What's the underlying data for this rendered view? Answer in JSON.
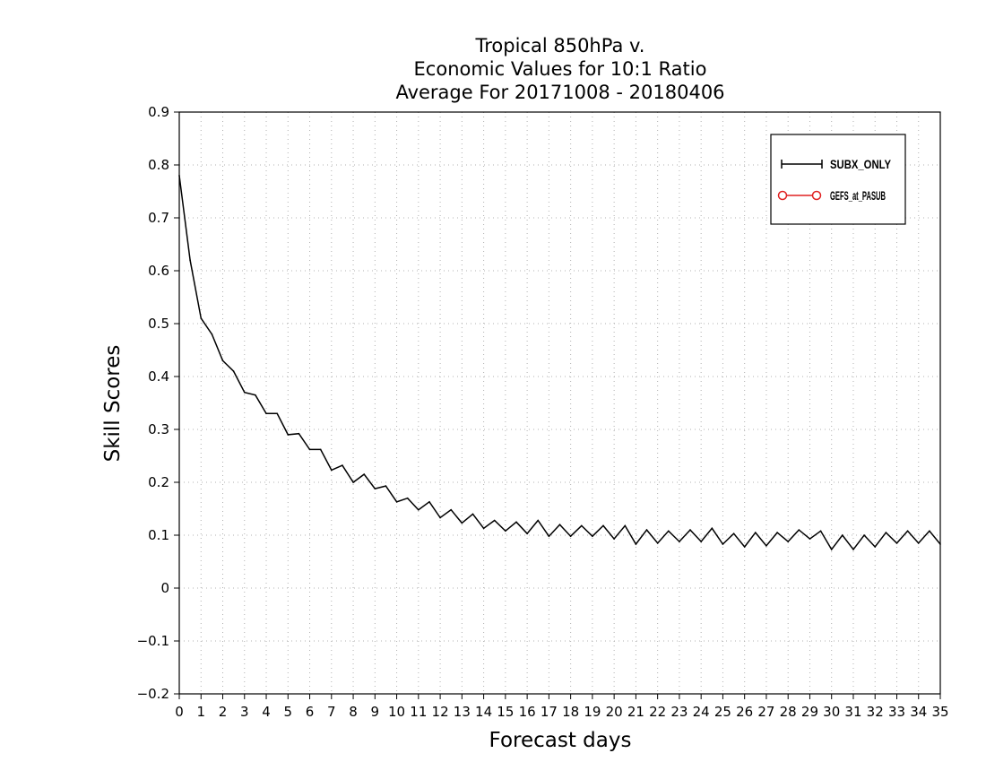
{
  "chart_data": {
    "type": "line",
    "title_lines": [
      "Tropical 850hPa v.",
      "Economic Values for 10:1 Ratio",
      "Average For 20171008 - 20180406"
    ],
    "xlabel": "Forecast days",
    "ylabel": "Skill Scores",
    "xlim": [
      0,
      35
    ],
    "ylim": [
      -0.2,
      0.9
    ],
    "x_ticks": [
      0,
      1,
      2,
      3,
      4,
      5,
      6,
      7,
      8,
      9,
      10,
      11,
      12,
      13,
      14,
      15,
      16,
      17,
      18,
      19,
      20,
      21,
      22,
      23,
      24,
      25,
      26,
      27,
      28,
      29,
      30,
      31,
      32,
      33,
      34,
      35
    ],
    "y_ticks": [
      -0.2,
      -0.1,
      0,
      0.1,
      0.2,
      0.3,
      0.4,
      0.5,
      0.6,
      0.7,
      0.8,
      0.9
    ],
    "y_tick_labels": [
      "−0.2",
      "−0.1",
      "0",
      "0.1",
      "0.2",
      "0.3",
      "0.4",
      "0.5",
      "0.6",
      "0.7",
      "0.8",
      "0.9"
    ],
    "grid": true,
    "legend_position": "top-right",
    "series": [
      {
        "name": "SUBX_ONLY",
        "color": "#000000",
        "marker": "plus",
        "x": [
          0,
          0.5,
          1,
          1.5,
          2,
          2.5,
          3,
          3.5,
          4,
          4.5,
          5,
          5.5,
          6,
          6.5,
          7,
          7.5,
          8,
          8.5,
          9,
          9.5,
          10,
          10.5,
          11,
          11.5,
          12,
          12.5,
          13,
          13.5,
          14,
          14.5,
          15,
          15.5,
          16,
          16.5,
          17,
          17.5,
          18,
          18.5,
          19,
          19.5,
          20,
          20.5,
          21,
          21.5,
          22,
          22.5,
          23,
          23.5,
          24,
          24.5,
          25,
          25.5,
          26,
          26.5,
          27,
          27.5,
          28,
          28.5,
          29,
          29.5,
          30,
          30.5,
          31,
          31.5,
          32,
          32.5,
          33,
          33.5,
          34,
          34.5,
          35
        ],
        "y": [
          0.78,
          0.62,
          0.51,
          0.48,
          0.43,
          0.41,
          0.37,
          0.365,
          0.33,
          0.33,
          0.29,
          0.292,
          0.262,
          0.262,
          0.223,
          0.232,
          0.2,
          0.215,
          0.188,
          0.193,
          0.163,
          0.17,
          0.148,
          0.163,
          0.133,
          0.148,
          0.123,
          0.14,
          0.113,
          0.128,
          0.108,
          0.125,
          0.103,
          0.128,
          0.098,
          0.12,
          0.098,
          0.118,
          0.098,
          0.118,
          0.093,
          0.118,
          0.083,
          0.11,
          0.085,
          0.108,
          0.088,
          0.11,
          0.088,
          0.113,
          0.083,
          0.103,
          0.078,
          0.105,
          0.08,
          0.105,
          0.088,
          0.11,
          0.093,
          0.108,
          0.073,
          0.1,
          0.073,
          0.1,
          0.078,
          0.105,
          0.085,
          0.108,
          0.085,
          0.108,
          0.083
        ]
      },
      {
        "name": "GEFS_at_PASUB",
        "color": "#e02020",
        "marker": "circle",
        "x": [],
        "y": []
      }
    ]
  }
}
